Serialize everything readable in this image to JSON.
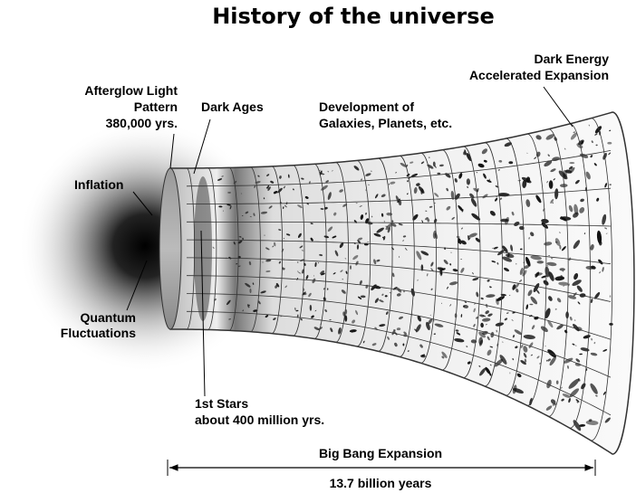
{
  "title": "History of the universe",
  "labels": [
    {
      "lines": [
        "Dark Energy",
        "Accelerated Expansion"
      ]
    },
    {
      "lines": [
        "Afterglow Light",
        "Pattern",
        "380,000 yrs."
      ]
    },
    {
      "lines": [
        "Dark Ages"
      ]
    },
    {
      "lines": [
        "Development of",
        "Galaxies, Planets, etc."
      ]
    },
    {
      "lines": [
        "Inflation"
      ]
    },
    {
      "lines": [
        "Quantum",
        "Fluctuations"
      ]
    },
    {
      "lines": [
        "1st Stars",
        "about 400 million yrs."
      ]
    }
  ],
  "span": {
    "title": "Big Bang Expansion",
    "duration": "13.7 billion years"
  }
}
